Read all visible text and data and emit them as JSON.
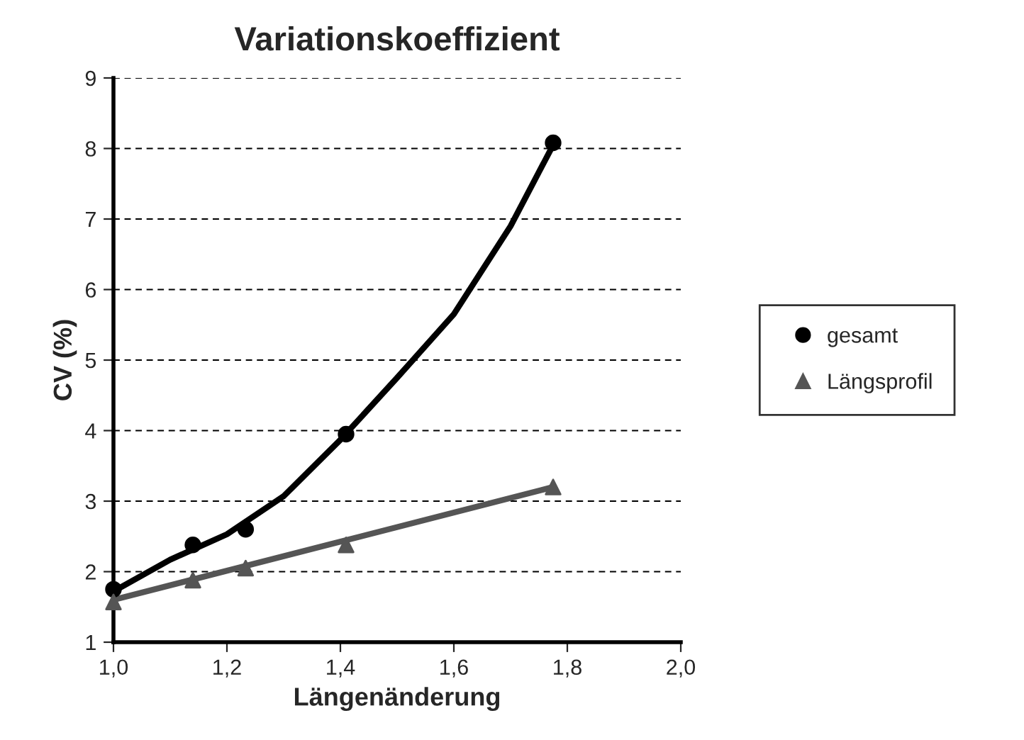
{
  "chart_data": {
    "type": "scatter",
    "title": "Variationskoeffizient",
    "xlabel": "Längenänderung",
    "ylabel": "CV (%)",
    "xlim": [
      1.0,
      2.0
    ],
    "xticks": [
      {
        "value": 1.0,
        "label": "1,0"
      },
      {
        "value": 1.2,
        "label": "1,2"
      },
      {
        "value": 1.4,
        "label": "1,4"
      },
      {
        "value": 1.6,
        "label": "1,6"
      },
      {
        "value": 1.8,
        "label": "1,8"
      },
      {
        "value": 2.0,
        "label": "2,0"
      }
    ],
    "ylim": [
      1,
      9
    ],
    "yticks": [
      1,
      2,
      3,
      4,
      5,
      6,
      7,
      8,
      9
    ],
    "grid": "y",
    "legend": "right",
    "series": [
      {
        "name": "gesamt",
        "marker": "circle",
        "color": "#000000",
        "x": [
          1.0,
          1.14,
          1.233,
          1.41,
          1.775
        ],
        "values": [
          1.75,
          2.38,
          2.6,
          3.95,
          8.08
        ]
      },
      {
        "name": "Längsprofil",
        "marker": "triangle",
        "color": "#555555",
        "x": [
          1.0,
          1.14,
          1.233,
          1.41,
          1.775
        ],
        "values": [
          1.57,
          1.88,
          2.05,
          2.38,
          3.2
        ]
      },
      {
        "type": "line",
        "marker": "none",
        "color": "#000000",
        "x": [
          1.0,
          1.1,
          1.2,
          1.3,
          1.4,
          1.5,
          1.6,
          1.7,
          1.775
        ],
        "values": [
          1.72,
          2.17,
          2.53,
          3.07,
          3.87,
          4.75,
          5.65,
          6.9,
          8.05
        ]
      },
      {
        "type": "line",
        "marker": "none",
        "color": "#555555",
        "x": [
          1.0,
          1.775
        ],
        "values": [
          1.6,
          3.2
        ]
      }
    ]
  }
}
